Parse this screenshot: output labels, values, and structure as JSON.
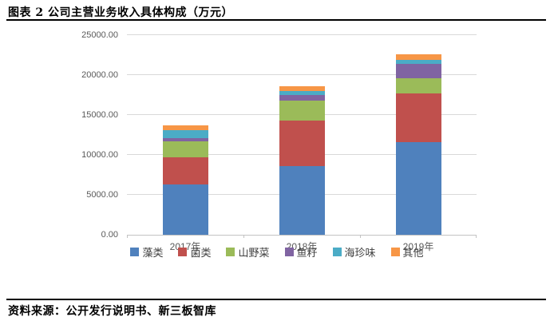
{
  "header": {
    "title": "图表 2 公司主营业务收入具体构成（万元）"
  },
  "footer": {
    "source": "资料来源：公开发行说明书、新三板智库"
  },
  "chart_data": {
    "type": "bar",
    "stacked": true,
    "title": "图表 2 公司主营业务收入具体构成（万元）",
    "unit": "万元",
    "categories": [
      "2017年",
      "2018年",
      "2019年"
    ],
    "series": [
      {
        "name": "藻类",
        "color": "#4F81BD",
        "values": [
          6350,
          8650,
          11600
        ]
      },
      {
        "name": "菌类",
        "color": "#C0504D",
        "values": [
          3350,
          5650,
          6150
        ]
      },
      {
        "name": "山野菜",
        "color": "#9BBB59",
        "values": [
          2050,
          2500,
          1850
        ]
      },
      {
        "name": "鱼籽",
        "color": "#8064A2",
        "values": [
          400,
          700,
          1850
        ]
      },
      {
        "name": "海珍味",
        "color": "#4BACC6",
        "values": [
          950,
          550,
          450
        ]
      },
      {
        "name": "其他",
        "color": "#F79646",
        "values": [
          650,
          550,
          750
        ]
      }
    ],
    "totals": [
      13750,
      18600,
      22650
    ],
    "ylim": [
      0,
      25000
    ],
    "ytick_step": 5000,
    "ytick_labels": [
      "0.00",
      "5000.00",
      "10000.00",
      "15000.00",
      "20000.00",
      "25000.00"
    ],
    "grid": true,
    "legend_position": "bottom",
    "gridline_color": "#D9D9D9",
    "axis_color": "#C3C3C3",
    "tick_label_color": "#595959"
  }
}
